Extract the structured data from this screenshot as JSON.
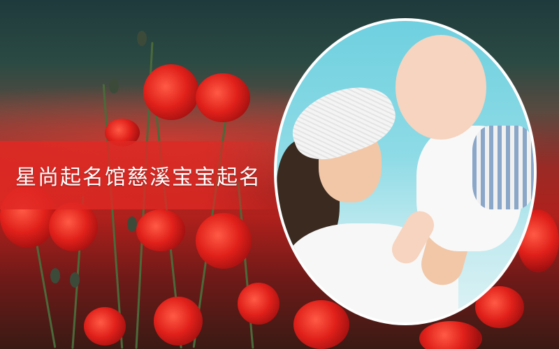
{
  "banner": {
    "title": "星尚起名馆慈溪宝宝起名"
  },
  "colors": {
    "banner_red": "#e12823",
    "sky": "#8edbe6",
    "poppy": "#e0201a"
  },
  "icons": [
    "poppy-flower-icon",
    "baby-photo"
  ]
}
